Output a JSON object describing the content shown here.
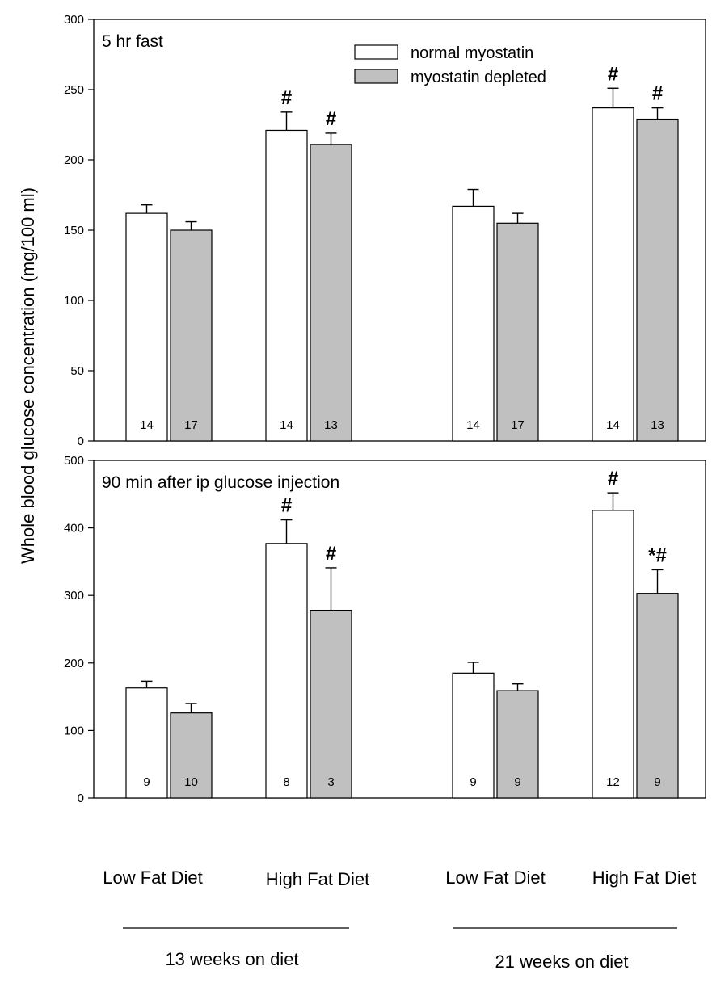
{
  "chart_data": {
    "ylabel": "Whole blood glucose concentration (mg/100 ml)",
    "categories": [
      "Low Fat Diet",
      "High Fat Diet",
      "Low Fat Diet",
      "High Fat Diet"
    ],
    "groups": [
      "13 weeks on diet",
      "21 weeks on diet"
    ],
    "legend": {
      "position": "top-right",
      "entries": [
        {
          "name": "normal myostatin",
          "color": "#ffffff"
        },
        {
          "name": "myostatin depleted",
          "color": "#c0c0c0"
        }
      ]
    },
    "panels": [
      {
        "type": "bar",
        "title": "5 hr fast",
        "ylim": [
          0,
          300
        ],
        "yticks": [
          0,
          50,
          100,
          150,
          200,
          250,
          300
        ],
        "series": [
          {
            "name": "normal myostatin",
            "values": [
              162,
              221,
              167,
              237
            ],
            "errors": [
              6,
              13,
              12,
              14
            ],
            "n": [
              "14",
              "14",
              "14",
              "14"
            ],
            "marks": [
              "",
              "#",
              "",
              "#"
            ]
          },
          {
            "name": "myostatin depleted",
            "values": [
              150,
              211,
              155,
              229
            ],
            "errors": [
              6,
              8,
              7,
              8
            ],
            "n": [
              "17",
              "13",
              "17",
              "13"
            ],
            "marks": [
              "",
              "#",
              "",
              "#"
            ]
          }
        ]
      },
      {
        "type": "bar",
        "title": "90 min after ip glucose injection",
        "ylim": [
          0,
          500
        ],
        "yticks": [
          0,
          100,
          200,
          300,
          400,
          500
        ],
        "series": [
          {
            "name": "normal myostatin",
            "values": [
              163,
              377,
              185,
              426
            ],
            "errors": [
              10,
              35,
              16,
              26
            ],
            "n": [
              "9",
              "8",
              "9",
              "12"
            ],
            "marks": [
              "",
              "#",
              "",
              "#"
            ]
          },
          {
            "name": "myostatin depleted",
            "values": [
              126,
              278,
              159,
              303
            ],
            "errors": [
              14,
              63,
              10,
              35
            ],
            "n": [
              "10",
              "3",
              "9",
              "9"
            ],
            "marks": [
              "",
              "#",
              "",
              "*#"
            ]
          }
        ]
      }
    ]
  }
}
